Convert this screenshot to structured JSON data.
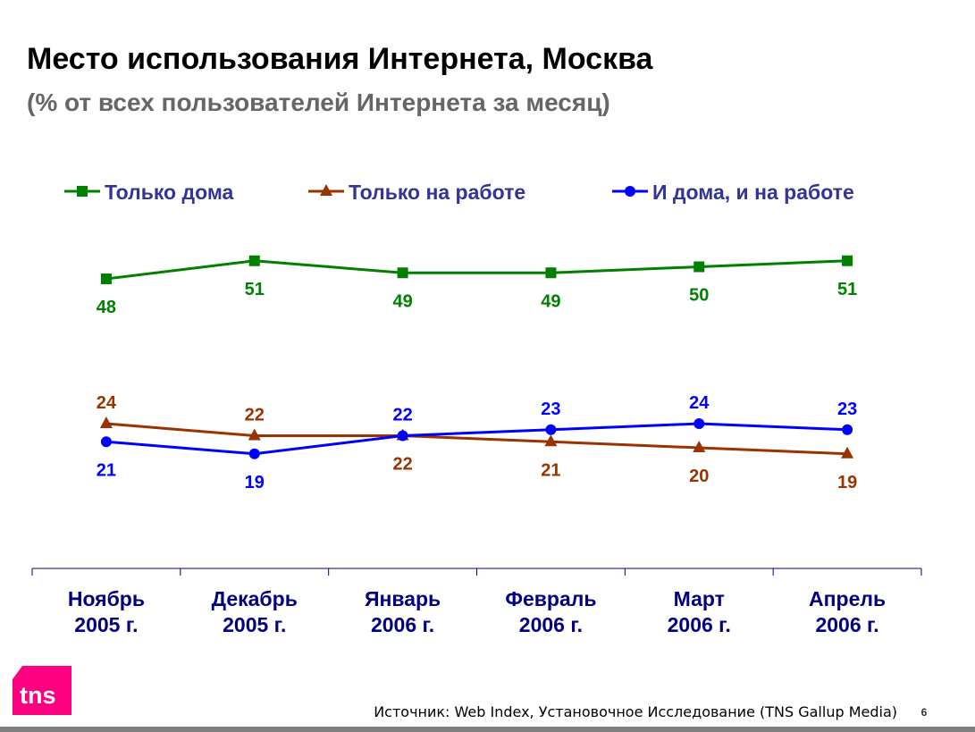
{
  "title": "Место использования Интернета, Москва",
  "subtitle": "(% от всех пользователей Интернета за месяц)",
  "source": "Источник: Web Index, Установочное Исследование (TNS Gallup Media)",
  "page_number": "6",
  "logo_text": "tns",
  "colors": {
    "green": "#008000",
    "brown": "#993300",
    "blue": "#0000FF",
    "legend_text": "#333399",
    "axis_text": "#000080",
    "logo": "#FF0080"
  },
  "chart_data": {
    "type": "line",
    "title": "Место использования Интернета, Москва",
    "xlabel": "",
    "ylabel": "%",
    "ylim": [
      0,
      60
    ],
    "grid": false,
    "legend_placement": "top",
    "categories": [
      [
        "Ноябрь",
        "2005 г."
      ],
      [
        "Декабрь",
        "2005 г."
      ],
      [
        "Январь",
        "2006 г."
      ],
      [
        "Февраль",
        "2006 г."
      ],
      [
        "Март",
        "2006 г."
      ],
      [
        "Апрель",
        "2006 г."
      ]
    ],
    "series": [
      {
        "name": "Только дома",
        "color": "#008000",
        "marker": "square",
        "values": [
          48,
          51,
          49,
          49,
          50,
          51
        ],
        "label_pos": [
          "below",
          "below",
          "below",
          "below",
          "below",
          "below"
        ]
      },
      {
        "name": "Только на работе",
        "color": "#993300",
        "marker": "triangle",
        "values": [
          24,
          22,
          22,
          21,
          20,
          19
        ],
        "label_pos": [
          "above",
          "above",
          "below",
          "below",
          "below",
          "below"
        ]
      },
      {
        "name": "И дома, и на работе",
        "color": "#0000FF",
        "marker": "circle",
        "values": [
          21,
          19,
          22,
          23,
          24,
          23
        ],
        "label_pos": [
          "below",
          "below",
          "above",
          "above",
          "above",
          "above"
        ]
      }
    ]
  }
}
